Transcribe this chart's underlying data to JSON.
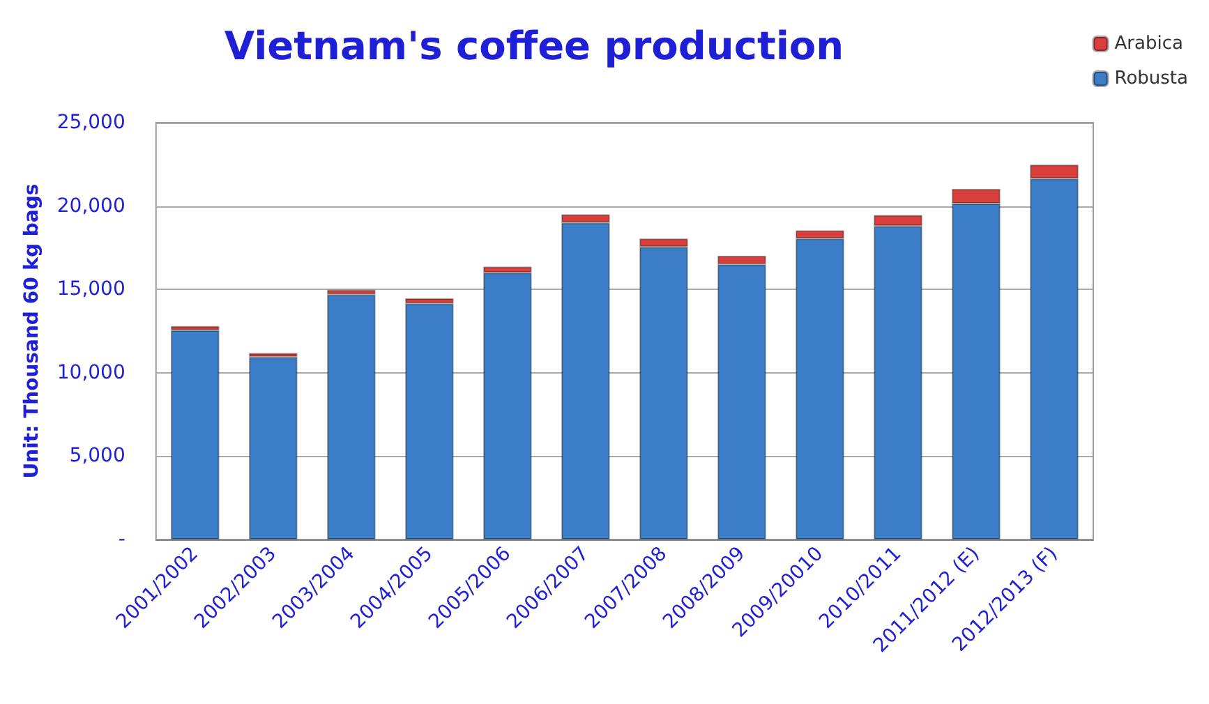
{
  "chart_data": {
    "type": "bar",
    "title": "Vietnam's coffee production",
    "ylabel": "Unit: Thousand 60 kg bags",
    "categories": [
      "2001/2002",
      "2002/2003",
      "2003/2004",
      "2004/2005",
      "2005/2006",
      "2006/2007",
      "2007/2008",
      "2008/2009",
      "2009/20010",
      "2010/2011",
      "2011/2012 (E)",
      "2012/2013 (F)"
    ],
    "stacked": true,
    "series": [
      {
        "name": "Robusta",
        "color": "#3b7dc6",
        "values": [
          12550,
          10950,
          14700,
          14150,
          16000,
          19000,
          17550,
          16500,
          18050,
          18800,
          20150,
          21650
        ]
      },
      {
        "name": "Arabica",
        "color": "#d9403b",
        "values": [
          250,
          230,
          280,
          320,
          370,
          500,
          500,
          520,
          490,
          660,
          880,
          830
        ]
      }
    ],
    "ylim": [
      0,
      25000
    ],
    "yticks": [
      {
        "value": 0,
        "label": "-"
      },
      {
        "value": 5000,
        "label": "5,000"
      },
      {
        "value": 10000,
        "label": "10,000"
      },
      {
        "value": 15000,
        "label": "15,000"
      },
      {
        "value": 20000,
        "label": "20,000"
      },
      {
        "value": 25000,
        "label": "25,000"
      }
    ],
    "grid": "y",
    "legend": "top right"
  }
}
